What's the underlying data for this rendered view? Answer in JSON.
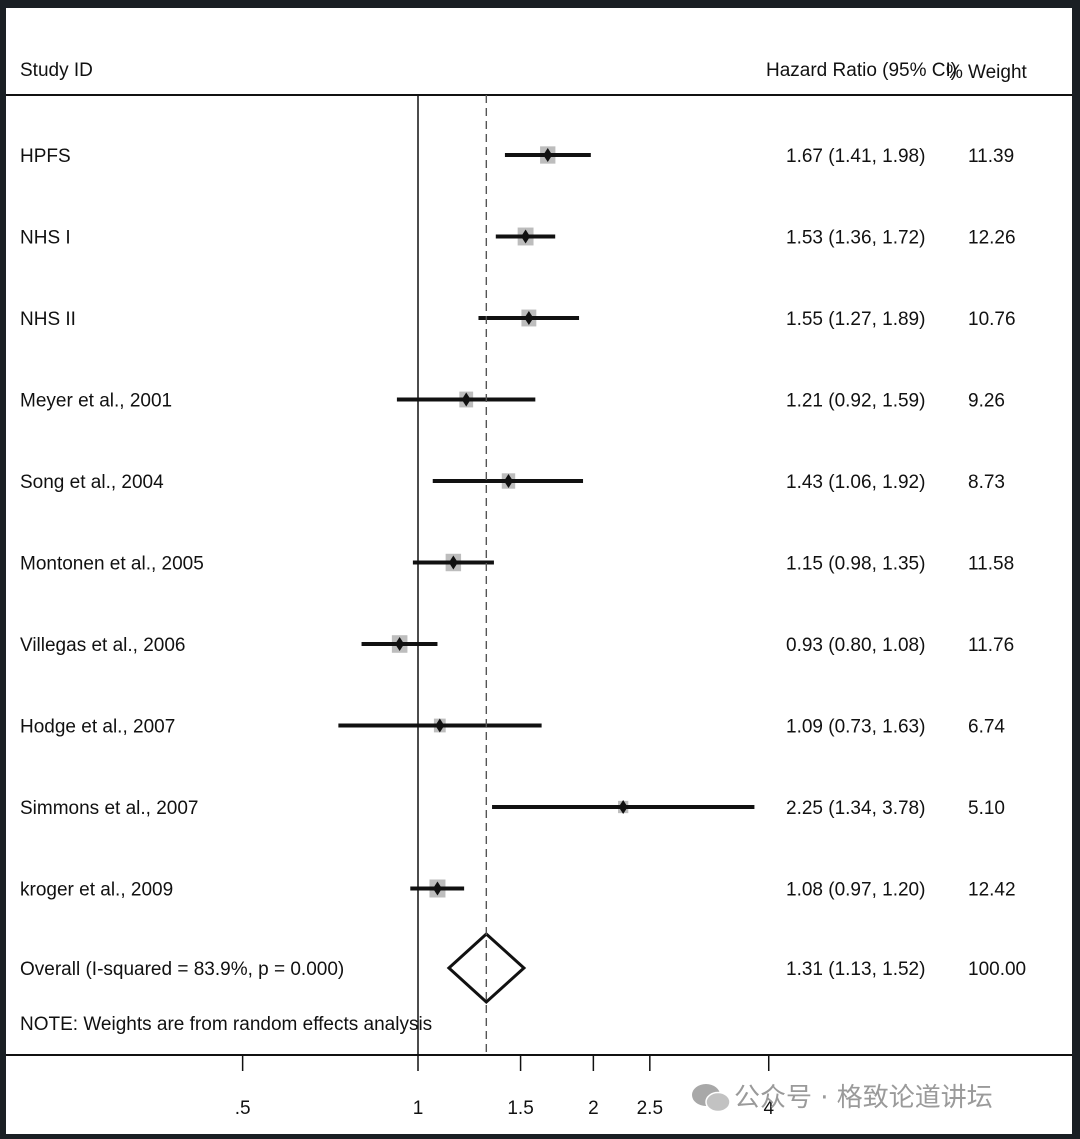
{
  "chart_data": {
    "type": "forest",
    "scale": "log",
    "columns": {
      "study": "Study ID",
      "effect": "Hazard Ratio (95% CI)",
      "weight_pct": "%",
      "weight": "Weight"
    },
    "reference_line": 1,
    "overall_line": 1.31,
    "x_ticks": [
      {
        "value": 0.5,
        "label": ".5"
      },
      {
        "value": 1,
        "label": "1"
      },
      {
        "value": 1.5,
        "label": "1.5"
      },
      {
        "value": 2,
        "label": "2"
      },
      {
        "value": 2.5,
        "label": "2.5"
      },
      {
        "value": 4,
        "label": "4"
      }
    ],
    "studies": [
      {
        "name": "HPFS",
        "hr": 1.67,
        "lo": 1.41,
        "hi": 1.98,
        "ci_text": "1.67 (1.41, 1.98)",
        "weight": 11.39,
        "weight_text": "11.39"
      },
      {
        "name": "NHS I",
        "hr": 1.53,
        "lo": 1.36,
        "hi": 1.72,
        "ci_text": "1.53 (1.36, 1.72)",
        "weight": 12.26,
        "weight_text": "12.26"
      },
      {
        "name": "NHS II",
        "hr": 1.55,
        "lo": 1.27,
        "hi": 1.89,
        "ci_text": "1.55 (1.27, 1.89)",
        "weight": 10.76,
        "weight_text": "10.76"
      },
      {
        "name": "Meyer et al., 2001",
        "hr": 1.21,
        "lo": 0.92,
        "hi": 1.59,
        "ci_text": "1.21 (0.92, 1.59)",
        "weight": 9.26,
        "weight_text": "9.26"
      },
      {
        "name": "Song et al., 2004",
        "hr": 1.43,
        "lo": 1.06,
        "hi": 1.92,
        "ci_text": "1.43 (1.06, 1.92)",
        "weight": 8.73,
        "weight_text": "8.73"
      },
      {
        "name": "Montonen et al., 2005",
        "hr": 1.15,
        "lo": 0.98,
        "hi": 1.35,
        "ci_text": "1.15 (0.98, 1.35)",
        "weight": 11.58,
        "weight_text": "11.58"
      },
      {
        "name": "Villegas et al., 2006",
        "hr": 0.93,
        "lo": 0.8,
        "hi": 1.08,
        "ci_text": "0.93 (0.80, 1.08)",
        "weight": 11.76,
        "weight_text": "11.76"
      },
      {
        "name": "Hodge et al., 2007",
        "hr": 1.09,
        "lo": 0.73,
        "hi": 1.63,
        "ci_text": "1.09 (0.73, 1.63)",
        "weight": 6.74,
        "weight_text": "6.74"
      },
      {
        "name": "Simmons et al., 2007",
        "hr": 2.25,
        "lo": 1.34,
        "hi": 3.78,
        "ci_text": "2.25 (1.34, 3.78)",
        "weight": 5.1,
        "weight_text": "5.10"
      },
      {
        "name": "kroger et al., 2009",
        "hr": 1.08,
        "lo": 0.97,
        "hi": 1.2,
        "ci_text": "1.08 (0.97, 1.20)",
        "weight": 12.42,
        "weight_text": "12.42"
      }
    ],
    "overall": {
      "label": "Overall  (I-squared = 83.9%, p = 0.000)",
      "hr": 1.31,
      "lo": 1.13,
      "hi": 1.52,
      "ci_text": "1.31 (1.13, 1.52)",
      "weight_text": "100.00"
    },
    "note": "NOTE: Weights are from random effects analysis"
  },
  "watermark": "公众号 · 格致论道讲坛",
  "colors": {
    "ink": "#111111",
    "box": "#bdbdbd",
    "frame_bg": "#1a1f24",
    "watermark": "#9a9a9a"
  }
}
